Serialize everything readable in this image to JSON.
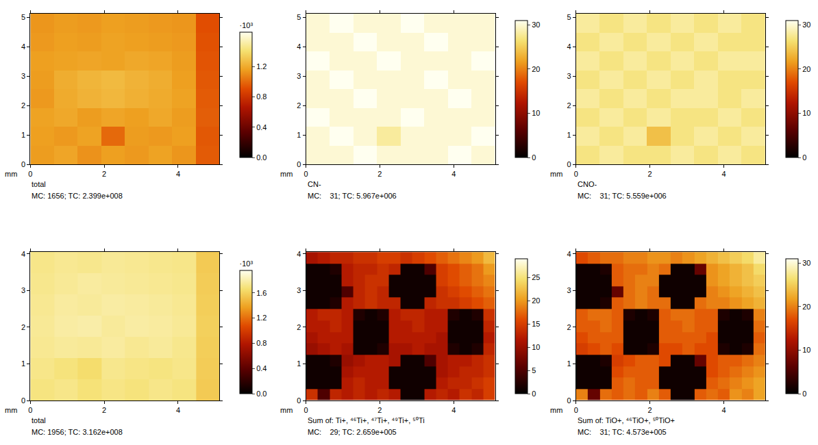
{
  "chart_data": [
    {
      "type": "heatmap",
      "title": "total",
      "subtitle": "MC: 1656; TC: 2.399e+008",
      "xlabel": "mm",
      "xlim": [
        0,
        5.12
      ],
      "ylim": [
        0,
        5.12
      ],
      "xticks": [
        0,
        2,
        4
      ],
      "yticks": [
        0,
        1,
        2,
        3,
        4,
        5
      ],
      "x": [
        0.32,
        0.96,
        1.6,
        2.24,
        2.88,
        3.52,
        4.16,
        4.8
      ],
      "y": [
        0.32,
        0.96,
        1.6,
        2.24,
        2.88,
        3.52,
        4.16,
        4.8
      ],
      "z": [
        [
          1150,
          1180,
          1120,
          1160,
          1140,
          1170,
          1130,
          960
        ],
        [
          1160,
          1140,
          1170,
          1000,
          1150,
          1140,
          1160,
          950
        ],
        [
          1170,
          1190,
          1150,
          1180,
          1160,
          1190,
          1150,
          970
        ],
        [
          1140,
          1200,
          1230,
          1250,
          1220,
          1200,
          1170,
          960
        ],
        [
          1150,
          1210,
          1240,
          1260,
          1230,
          1210,
          1160,
          950
        ],
        [
          1160,
          1170,
          1180,
          1170,
          1190,
          1180,
          1150,
          940
        ],
        [
          1140,
          1160,
          1150,
          1170,
          1160,
          1150,
          1140,
          930
        ],
        [
          1130,
          1150,
          1140,
          1160,
          1150,
          1140,
          1130,
          920
        ]
      ],
      "colorbar": {
        "range": [
          0,
          1656
        ],
        "title": "·10³",
        "ticks": [
          {
            "value": 0,
            "label": "0.0"
          },
          {
            "value": 400,
            "label": "0.4"
          },
          {
            "value": 800,
            "label": "0.8"
          },
          {
            "value": 1200,
            "label": "1.2"
          }
        ]
      }
    },
    {
      "type": "heatmap",
      "title": "CN-",
      "subtitle": "MC:    31; TC: 5.967e+006",
      "xlabel": "mm",
      "xlim": [
        0,
        5.12
      ],
      "ylim": [
        0,
        5.12
      ],
      "xticks": [
        0,
        2,
        4
      ],
      "yticks": [
        0,
        1,
        2,
        3,
        4,
        5
      ],
      "x": [
        0.32,
        0.96,
        1.6,
        2.24,
        2.88,
        3.52,
        4.16,
        4.8
      ],
      "y": [
        0.32,
        0.96,
        1.6,
        2.24,
        2.88,
        3.52,
        4.16,
        4.8
      ],
      "z": [
        [
          30,
          30,
          31,
          30,
          30,
          30,
          31,
          30
        ],
        [
          30,
          31,
          30,
          28,
          30,
          30,
          30,
          31
        ],
        [
          31,
          30,
          30,
          30,
          31,
          30,
          30,
          30
        ],
        [
          30,
          30,
          31,
          30,
          30,
          30,
          31,
          30
        ],
        [
          30,
          31,
          30,
          30,
          30,
          31,
          30,
          30
        ],
        [
          31,
          30,
          30,
          31,
          30,
          30,
          30,
          31
        ],
        [
          30,
          30,
          31,
          30,
          30,
          31,
          30,
          30
        ],
        [
          30,
          31,
          30,
          30,
          31,
          30,
          30,
          30
        ]
      ],
      "colorbar": {
        "range": [
          0,
          31
        ],
        "ticks": [
          0,
          10,
          20,
          30
        ]
      }
    },
    {
      "type": "heatmap",
      "title": "CNO-",
      "subtitle": "MC:    31; TC: 5.559e+006",
      "xlabel": "mm",
      "xlim": [
        0,
        5.12
      ],
      "ylim": [
        0,
        5.12
      ],
      "xticks": [
        0,
        2,
        4
      ],
      "yticks": [
        0,
        1,
        2,
        3,
        4,
        5
      ],
      "x": [
        0.32,
        0.96,
        1.6,
        2.24,
        2.88,
        3.52,
        4.16,
        4.8
      ],
      "y": [
        0.32,
        0.96,
        1.6,
        2.24,
        2.88,
        3.52,
        4.16,
        4.8
      ],
      "z": [
        [
          27,
          28,
          27,
          27,
          28,
          27,
          28,
          27
        ],
        [
          28,
          27,
          28,
          24,
          27,
          28,
          27,
          28
        ],
        [
          27,
          28,
          27,
          28,
          27,
          27,
          28,
          27
        ],
        [
          28,
          27,
          28,
          27,
          28,
          28,
          27,
          28
        ],
        [
          27,
          28,
          27,
          28,
          27,
          28,
          27,
          27
        ],
        [
          28,
          27,
          28,
          27,
          28,
          27,
          28,
          28
        ],
        [
          27,
          28,
          27,
          28,
          27,
          28,
          27,
          27
        ],
        [
          28,
          27,
          28,
          27,
          28,
          27,
          28,
          27
        ]
      ],
      "colorbar": {
        "range": [
          0,
          31
        ],
        "ticks": [
          0,
          10,
          20,
          30
        ]
      }
    },
    {
      "type": "heatmap",
      "title": "total",
      "subtitle": "MC: 1956; TC: 3.162e+008",
      "xlabel": "mm",
      "xlim": [
        0,
        5.12
      ],
      "ylim": [
        0,
        4.05
      ],
      "xticks": [
        0,
        2,
        4
      ],
      "yticks": [
        0,
        1,
        2,
        3,
        4
      ],
      "x": [
        0.32,
        0.96,
        1.6,
        2.24,
        2.88,
        3.52,
        4.16,
        4.8
      ],
      "y": [
        0.29,
        0.87,
        1.45,
        2.03,
        2.6,
        3.18,
        3.76
      ],
      "z": [
        [
          1700,
          1720,
          1680,
          1710,
          1690,
          1720,
          1700,
          1560
        ],
        [
          1720,
          1690,
          1650,
          1730,
          1710,
          1700,
          1720,
          1570
        ],
        [
          1740,
          1760,
          1750,
          1770,
          1740,
          1760,
          1730,
          1580
        ],
        [
          1750,
          1780,
          1790,
          1760,
          1780,
          1770,
          1750,
          1590
        ],
        [
          1740,
          1770,
          1760,
          1780,
          1770,
          1760,
          1740,
          1580
        ],
        [
          1730,
          1750,
          1770,
          1760,
          1750,
          1740,
          1730,
          1570
        ],
        [
          1720,
          1740,
          1730,
          1750,
          1740,
          1730,
          1720,
          1560
        ]
      ],
      "colorbar": {
        "range": [
          0,
          1956
        ],
        "title": "·10³",
        "ticks": [
          {
            "value": 0,
            "label": "0.0"
          },
          {
            "value": 400,
            "label": "0.4"
          },
          {
            "value": 800,
            "label": "0.8"
          },
          {
            "value": 1200,
            "label": "1.2"
          },
          {
            "value": 1600,
            "label": "1.6"
          }
        ]
      }
    },
    {
      "type": "heatmap",
      "title": "Sum of: Ti+, ⁴⁶Ti+, ⁴⁷Ti+, ⁴⁹Ti+, ⁵⁰Ti",
      "subtitle": "MC:    29; TC: 2.659e+005",
      "xlabel": "mm",
      "xlim": [
        0,
        5.12
      ],
      "ylim": [
        0,
        4.05
      ],
      "xticks": [
        0,
        2,
        4
      ],
      "yticks": [
        0,
        1,
        2,
        3,
        4
      ],
      "x": [
        0.16,
        0.48,
        0.8,
        1.12,
        1.44,
        1.76,
        2.08,
        2.4,
        2.72,
        3.04,
        3.36,
        3.68,
        4.0,
        4.32,
        4.64,
        4.96
      ],
      "y": [
        0.16,
        0.47,
        0.78,
        1.09,
        1.4,
        1.71,
        2.02,
        2.34,
        2.65,
        2.96,
        3.27,
        3.58,
        3.89
      ],
      "z": [
        [
          14,
          5,
          13,
          12,
          13,
          12,
          13,
          12,
          1,
          1,
          12,
          13,
          12,
          14,
          13,
          15
        ],
        [
          1,
          1,
          1,
          12,
          13,
          12,
          12,
          1,
          1,
          1,
          1,
          12,
          13,
          13,
          14,
          15
        ],
        [
          1,
          1,
          1,
          11,
          12,
          12,
          12,
          1,
          1,
          1,
          1,
          11,
          12,
          13,
          13,
          14
        ],
        [
          1,
          1,
          2,
          10,
          11,
          12,
          12,
          11,
          1,
          1,
          5,
          11,
          12,
          12,
          13,
          14
        ],
        [
          10,
          11,
          12,
          11,
          1,
          1,
          2,
          11,
          11,
          12,
          11,
          11,
          2,
          1,
          2,
          13
        ],
        [
          11,
          12,
          12,
          12,
          1,
          1,
          1,
          12,
          12,
          12,
          12,
          11,
          1,
          1,
          1,
          12
        ],
        [
          12,
          12,
          13,
          12,
          1,
          1,
          1,
          12,
          12,
          13,
          12,
          12,
          1,
          1,
          1,
          13
        ],
        [
          12,
          13,
          13,
          12,
          2,
          1,
          2,
          12,
          13,
          13,
          12,
          12,
          2,
          1,
          2,
          14
        ],
        [
          1,
          1,
          2,
          12,
          13,
          14,
          13,
          13,
          1,
          1,
          13,
          14,
          14,
          15,
          16,
          17
        ],
        [
          1,
          1,
          1,
          5,
          13,
          14,
          13,
          1,
          1,
          1,
          1,
          14,
          15,
          16,
          17,
          18
        ],
        [
          1,
          1,
          1,
          12,
          13,
          14,
          14,
          1,
          1,
          1,
          1,
          15,
          16,
          17,
          18,
          19
        ],
        [
          1,
          1,
          2,
          12,
          13,
          13,
          14,
          13,
          1,
          1,
          5,
          15,
          16,
          17,
          18,
          20
        ],
        [
          11,
          12,
          13,
          13,
          14,
          14,
          15,
          15,
          14,
          15,
          16,
          17,
          18,
          19,
          20,
          22
        ]
      ],
      "colorbar": {
        "range": [
          0,
          29
        ],
        "ticks": [
          0,
          5,
          10,
          15,
          20,
          25
        ]
      }
    },
    {
      "type": "heatmap",
      "title": "Sum of: TiO+, ⁴⁶TiO+, ⁵⁰TiO+",
      "subtitle": "MC:    31; TC: 4.573e+005",
      "xlabel": "mm",
      "xlim": [
        0,
        5.12
      ],
      "ylim": [
        0,
        4.05
      ],
      "xticks": [
        0,
        2,
        4
      ],
      "yticks": [
        0,
        1,
        2,
        3,
        4
      ],
      "x": [
        0.16,
        0.48,
        0.8,
        1.12,
        1.44,
        1.76,
        2.08,
        2.4,
        2.72,
        3.04,
        3.36,
        3.68,
        4.0,
        4.32,
        4.64,
        4.96
      ],
      "y": [
        0.16,
        0.47,
        0.78,
        1.09,
        1.4,
        1.71,
        2.02,
        2.34,
        2.65,
        2.96,
        3.27,
        3.58,
        3.89
      ],
      "z": [
        [
          20,
          7,
          19,
          18,
          19,
          18,
          20,
          18,
          1,
          1,
          18,
          19,
          18,
          21,
          20,
          22
        ],
        [
          1,
          1,
          1,
          18,
          19,
          18,
          18,
          1,
          1,
          1,
          1,
          18,
          19,
          20,
          21,
          22
        ],
        [
          1,
          1,
          1,
          17,
          18,
          18,
          18,
          1,
          1,
          1,
          1,
          17,
          18,
          19,
          20,
          21
        ],
        [
          1,
          1,
          2,
          16,
          17,
          18,
          18,
          17,
          1,
          1,
          7,
          17,
          18,
          18,
          19,
          20
        ],
        [
          16,
          17,
          18,
          17,
          1,
          1,
          2,
          17,
          17,
          18,
          17,
          17,
          2,
          1,
          2,
          19
        ],
        [
          17,
          18,
          18,
          18,
          1,
          1,
          1,
          18,
          18,
          18,
          18,
          17,
          1,
          1,
          1,
          18
        ],
        [
          18,
          18,
          19,
          18,
          1,
          1,
          1,
          18,
          18,
          19,
          18,
          18,
          1,
          1,
          1,
          19
        ],
        [
          18,
          19,
          19,
          18,
          2,
          1,
          2,
          18,
          19,
          19,
          18,
          18,
          2,
          1,
          2,
          20
        ],
        [
          1,
          1,
          2,
          18,
          19,
          20,
          19,
          19,
          1,
          1,
          19,
          20,
          20,
          21,
          22,
          23
        ],
        [
          1,
          1,
          1,
          7,
          19,
          20,
          19,
          1,
          1,
          1,
          1,
          20,
          21,
          22,
          23,
          24
        ],
        [
          1,
          1,
          1,
          18,
          19,
          20,
          20,
          1,
          1,
          1,
          1,
          21,
          22,
          23,
          24,
          25
        ],
        [
          1,
          1,
          2,
          18,
          19,
          19,
          20,
          19,
          1,
          1,
          7,
          21,
          22,
          23,
          24,
          26
        ],
        [
          17,
          18,
          19,
          19,
          20,
          20,
          21,
          21,
          20,
          21,
          22,
          23,
          24,
          25,
          26,
          28
        ]
      ],
      "colorbar": {
        "range": [
          0,
          31
        ],
        "ticks": [
          0,
          10,
          20,
          30
        ]
      }
    }
  ]
}
